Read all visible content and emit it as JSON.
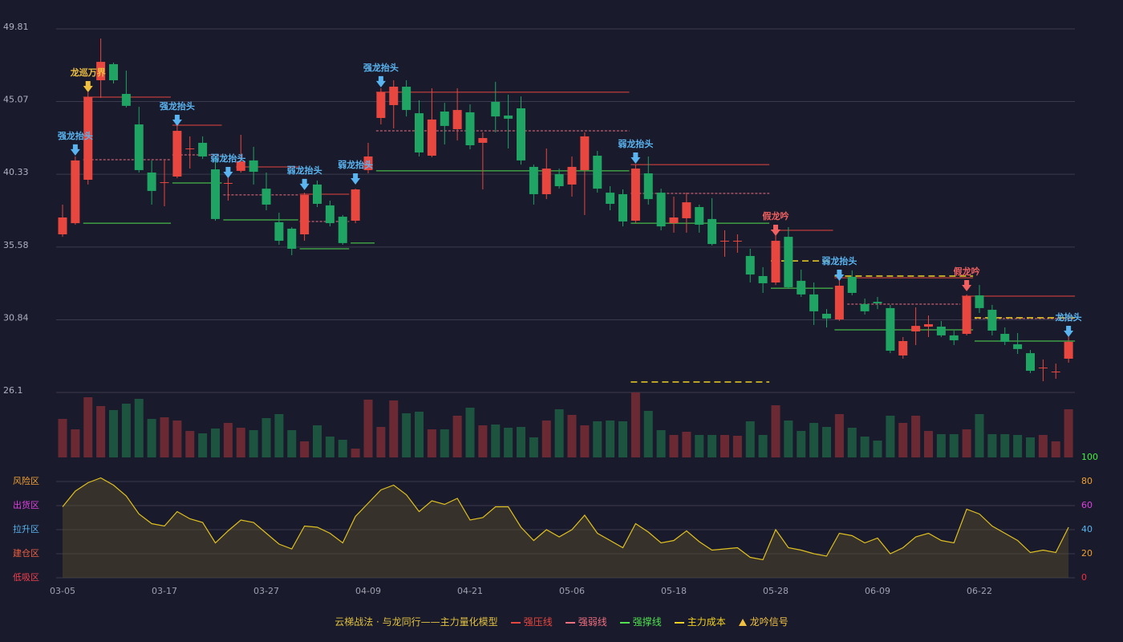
{
  "chart_data": {
    "type": "candlestick",
    "categories": [
      "03-05",
      null,
      null,
      null,
      null,
      null,
      null,
      null,
      "03-17",
      null,
      null,
      null,
      null,
      null,
      null,
      null,
      "03-27",
      null,
      null,
      null,
      null,
      null,
      null,
      null,
      "04-09",
      null,
      null,
      null,
      null,
      null,
      null,
      null,
      "04-21",
      null,
      null,
      null,
      null,
      null,
      null,
      null,
      "05-06",
      null,
      null,
      null,
      null,
      null,
      null,
      null,
      "05-18",
      null,
      null,
      null,
      null,
      null,
      null,
      null,
      "05-28",
      null,
      null,
      null,
      null,
      null,
      null,
      null,
      "06-09",
      null,
      null,
      null,
      null,
      null,
      null,
      null,
      "06-22",
      null,
      null,
      null,
      null,
      null,
      null,
      null
    ],
    "open": [
      36.41,
      37.14,
      39.97,
      46.46,
      47.51,
      45.57,
      43.58,
      40.44,
      39.81,
      40.18,
      42.01,
      42.38,
      40.65,
      39.76,
      40.55,
      41.23,
      39.39,
      37.2,
      36.78,
      36.41,
      39.66,
      38.3,
      37.56,
      37.3,
      40.6,
      44.0,
      44.84,
      46.04,
      44.31,
      41.54,
      44.42,
      43.27,
      44.37,
      42.38,
      45.05,
      44.16,
      44.63,
      40.81,
      39.03,
      40.34,
      39.66,
      40.6,
      41.54,
      39.13,
      39.03,
      37.3,
      40.39,
      39.13,
      37.14,
      37.46,
      38.19,
      37.41,
      35.99,
      35.99,
      35.0,
      33.69,
      33.27,
      36.25,
      33.38,
      32.49,
      31.23,
      30.86,
      33.64,
      31.86,
      32.01,
      31.6,
      28.51,
      30.08,
      30.39,
      30.39,
      29.82,
      29.92,
      32.43,
      31.49,
      29.92,
      29.24,
      28.66,
      27.72,
      27.46,
      28.3
    ],
    "high": [
      38.35,
      41.49,
      45.68,
      49.18,
      47.61,
      47.09,
      44.73,
      41.23,
      41.23,
      43.58,
      42.8,
      42.8,
      41.49,
      40.44,
      42.9,
      42.12,
      40.44,
      37.82,
      36.88,
      39.13,
      39.92,
      38.61,
      37.67,
      39.39,
      42.38,
      45.94,
      46.46,
      46.46,
      45.15,
      45.94,
      44.99,
      45.94,
      44.89,
      43.06,
      46.36,
      45.52,
      45.41,
      40.96,
      42.01,
      40.7,
      41.49,
      43.06,
      41.85,
      39.55,
      39.34,
      40.96,
      41.49,
      39.39,
      38.87,
      39.13,
      38.35,
      38.77,
      36.67,
      36.41,
      35.47,
      34.27,
      36.67,
      36.88,
      34.11,
      33.27,
      31.54,
      33.64,
      34.06,
      32.22,
      32.33,
      31.81,
      29.71,
      31.65,
      31.12,
      30.76,
      30.13,
      32.49,
      33.11,
      31.81,
      30.34,
      29.97,
      28.87,
      28.25,
      27.98,
      29.82
    ],
    "low": [
      36.25,
      37.04,
      39.66,
      45.31,
      46.25,
      44.68,
      40.44,
      38.35,
      38.24,
      40.07,
      40.7,
      41.33,
      37.3,
      38.61,
      40.44,
      39.66,
      37.98,
      35.73,
      35.05,
      35.99,
      38.19,
      36.93,
      35.73,
      37.14,
      40.39,
      43.58,
      43.32,
      44.1,
      41.49,
      41.44,
      42.27,
      42.53,
      41.96,
      39.34,
      43.06,
      42.01,
      40.96,
      38.35,
      38.71,
      39.39,
      38.87,
      37.67,
      39.13,
      37.98,
      36.93,
      37.14,
      38.35,
      36.67,
      36.52,
      36.52,
      36.52,
      35.68,
      34.95,
      35.21,
      33.27,
      32.59,
      33.11,
      32.85,
      32.33,
      30.5,
      30.34,
      30.76,
      32.43,
      31.18,
      31.54,
      28.66,
      28.3,
      29.19,
      29.71,
      29.71,
      29.19,
      29.82,
      31.28,
      29.82,
      29.19,
      28.61,
      27.36,
      26.83,
      26.99,
      28.04
    ],
    "close": [
      37.51,
      41.23,
      45.36,
      47.66,
      46.46,
      44.79,
      40.6,
      39.24,
      39.81,
      43.16,
      42.01,
      41.49,
      37.41,
      39.76,
      41.17,
      40.49,
      38.35,
      35.99,
      35.47,
      38.98,
      38.4,
      37.14,
      35.84,
      39.34,
      41.49,
      45.68,
      46.04,
      44.52,
      41.75,
      43.9,
      43.48,
      44.52,
      42.22,
      42.69,
      44.1,
      43.95,
      41.23,
      39.03,
      40.7,
      39.55,
      40.81,
      42.8,
      39.39,
      38.4,
      37.25,
      40.7,
      38.71,
      36.93,
      37.51,
      38.5,
      37.04,
      35.78,
      35.99,
      35.99,
      33.79,
      33.22,
      35.99,
      32.96,
      32.49,
      31.39,
      30.92,
      33.06,
      32.59,
      31.39,
      31.91,
      28.82,
      29.45,
      30.44,
      30.55,
      29.82,
      29.5,
      32.38,
      31.6,
      30.13,
      29.4,
      28.93,
      27.51,
      27.72,
      27.46,
      29.4
    ],
    "volume": [
      48,
      35,
      75,
      64,
      59,
      67,
      73,
      48,
      50,
      46,
      33,
      30,
      36,
      43,
      37,
      34,
      49,
      54,
      34,
      20,
      40,
      26,
      22,
      11,
      72,
      38,
      71,
      55,
      57,
      35,
      35,
      52,
      62,
      40,
      41,
      37,
      38,
      25,
      46,
      60,
      53,
      40,
      45,
      46,
      45,
      81,
      58,
      34,
      28,
      32,
      28,
      28,
      28,
      27,
      45,
      28,
      65,
      46,
      33,
      43,
      38,
      54,
      37,
      26,
      21,
      52,
      43,
      52,
      33,
      29,
      29,
      35,
      54,
      29,
      29,
      28,
      25,
      28,
      20,
      60
    ],
    "ylim": [
      26.1,
      49.81
    ],
    "yticks": [
      26.1,
      30.84,
      35.58,
      40.33,
      45.07,
      49.81
    ],
    "up_color": "#e8473f",
    "down_color": "#1fa463",
    "up_volume_color": "#6b2a33",
    "down_volume_color": "#1d5440",
    "indicator": {
      "values": [
        59,
        72,
        79,
        83,
        77,
        68,
        53,
        45,
        43,
        55,
        49,
        46,
        29,
        39,
        48,
        46,
        37,
        28,
        24,
        43,
        42,
        37,
        29,
        51,
        62,
        73,
        77,
        69,
        55,
        64,
        61,
        66,
        48,
        50,
        59,
        59,
        42,
        31,
        40,
        34,
        40,
        52,
        37,
        31,
        25,
        45,
        38,
        29,
        31,
        39,
        30,
        23,
        24,
        25,
        17,
        15,
        40,
        25,
        23,
        20,
        18,
        37,
        35,
        29,
        33,
        20,
        25,
        34,
        37,
        31,
        29,
        57,
        53,
        43,
        37,
        31,
        21,
        23,
        21,
        42
      ],
      "ylim": [
        0,
        100
      ],
      "yticks": [
        0,
        20,
        40,
        60,
        80,
        100
      ],
      "tick_colors": [
        "#f03040",
        "#f0a030",
        "#5ab4f0",
        "#e040e0",
        "#f0a030",
        "#40f040"
      ],
      "zones": [
        {
          "label": "低吸区",
          "value": 0,
          "color": "#f04050"
        },
        {
          "label": "建仓区",
          "value": 20,
          "color": "#f06040"
        },
        {
          "label": "拉升区",
          "value": 40,
          "color": "#5ab4f0"
        },
        {
          "label": "出货区",
          "value": 60,
          "color": "#e040e0"
        },
        {
          "label": "风险区",
          "value": 80,
          "color": "#f0a030"
        }
      ],
      "color": "#e0c020"
    },
    "level_styles": {
      "pressure": {
        "color": "#e8473f",
        "dash": false
      },
      "weak": {
        "color": "#f07080",
        "dash": true
      },
      "support": {
        "color": "#50e050",
        "dash": false
      },
      "cost": {
        "color": "#f0d020",
        "dash": true
      }
    },
    "levels": [
      {
        "kind": "pressure",
        "start": 2,
        "end": 8,
        "value": 45.36
      },
      {
        "kind": "pressure",
        "start": 9,
        "end": 12,
        "value": 43.53
      },
      {
        "kind": "pressure",
        "start": 14,
        "end": 18,
        "value": 40.81
      },
      {
        "kind": "pressure",
        "start": 19,
        "end": 22,
        "value": 39.03
      },
      {
        "kind": "pressure",
        "start": 25,
        "end": 44,
        "value": 45.68
      },
      {
        "kind": "pressure",
        "start": 45,
        "end": 55,
        "value": 40.96
      },
      {
        "kind": "pressure",
        "start": 56,
        "end": 60,
        "value": 36.67
      },
      {
        "kind": "pressure",
        "start": 61,
        "end": 71,
        "value": 33.58
      },
      {
        "kind": "pressure",
        "start": 71,
        "end": 79,
        "value": 32.38
      },
      {
        "kind": "weak",
        "start": 2,
        "end": 8,
        "value": 41.28
      },
      {
        "kind": "weak",
        "start": 9,
        "end": 12,
        "value": 41.59
      },
      {
        "kind": "weak",
        "start": 13,
        "end": 18,
        "value": 38.98
      },
      {
        "kind": "weak",
        "start": 19,
        "end": 22,
        "value": 37.25
      },
      {
        "kind": "weak",
        "start": 25,
        "end": 44,
        "value": 43.16
      },
      {
        "kind": "weak",
        "start": 45,
        "end": 55,
        "value": 39.08
      },
      {
        "kind": "weak",
        "start": 62,
        "end": 70,
        "value": 31.86
      },
      {
        "kind": "weak",
        "start": 72,
        "end": 79,
        "value": 30.92
      },
      {
        "kind": "support",
        "start": 2,
        "end": 8,
        "value": 37.14
      },
      {
        "kind": "support",
        "start": 9,
        "end": 12,
        "value": 39.76
      },
      {
        "kind": "support",
        "start": 13,
        "end": 18,
        "value": 37.35
      },
      {
        "kind": "support",
        "start": 19,
        "end": 22,
        "value": 35.47
      },
      {
        "kind": "support",
        "start": 23,
        "end": 24,
        "value": 35.84
      },
      {
        "kind": "support",
        "start": 25,
        "end": 44,
        "value": 40.55
      },
      {
        "kind": "support",
        "start": 45,
        "end": 55,
        "value": 37.14
      },
      {
        "kind": "support",
        "start": 56,
        "end": 60,
        "value": 32.9
      },
      {
        "kind": "support",
        "start": 61,
        "end": 71,
        "value": 30.18
      },
      {
        "kind": "support",
        "start": 72,
        "end": 79,
        "value": 29.45
      },
      {
        "kind": "cost",
        "start": 45,
        "end": 55,
        "value": 26.78
      },
      {
        "kind": "cost",
        "start": 56,
        "end": 60,
        "value": 34.68
      },
      {
        "kind": "cost",
        "start": 61,
        "end": 71,
        "value": 33.69
      },
      {
        "kind": "cost",
        "start": 72,
        "end": 79,
        "value": 30.97
      }
    ],
    "signals": [
      {
        "label": "强龙抬头",
        "index": 1,
        "color": "#5ab4f0"
      },
      {
        "label": "龙巡万界",
        "index": 2,
        "color": "#f0c040"
      },
      {
        "label": "强龙抬头",
        "index": 9,
        "color": "#5ab4f0"
      },
      {
        "label": "弱龙抬头",
        "index": 13,
        "color": "#5ab4f0"
      },
      {
        "label": "弱龙抬头",
        "index": 19,
        "color": "#5ab4f0"
      },
      {
        "label": "弱龙抬头",
        "index": 23,
        "color": "#5ab4f0"
      },
      {
        "label": "强龙抬头",
        "index": 25,
        "color": "#5ab4f0"
      },
      {
        "label": "弱龙抬头",
        "index": 45,
        "color": "#5ab4f0"
      },
      {
        "label": "假龙吟",
        "index": 56,
        "color": "#f06060"
      },
      {
        "label": "弱龙抬头",
        "index": 61,
        "color": "#5ab4f0"
      },
      {
        "label": "假龙吟",
        "index": 71,
        "color": "#f06060"
      },
      {
        "label": "龙抬头",
        "index": 79,
        "color": "#5ab4f0"
      }
    ],
    "legend": {
      "title": "云梯战法 · 与龙同行——主力量化模型",
      "items": [
        {
          "label": "强压线",
          "kind": "pressure"
        },
        {
          "label": "强弱线",
          "kind": "weak"
        },
        {
          "label": "强撑线",
          "kind": "support"
        },
        {
          "label": "主力成本",
          "kind": "cost"
        },
        {
          "label": "龙吟信号",
          "kind": "signal"
        }
      ]
    }
  }
}
